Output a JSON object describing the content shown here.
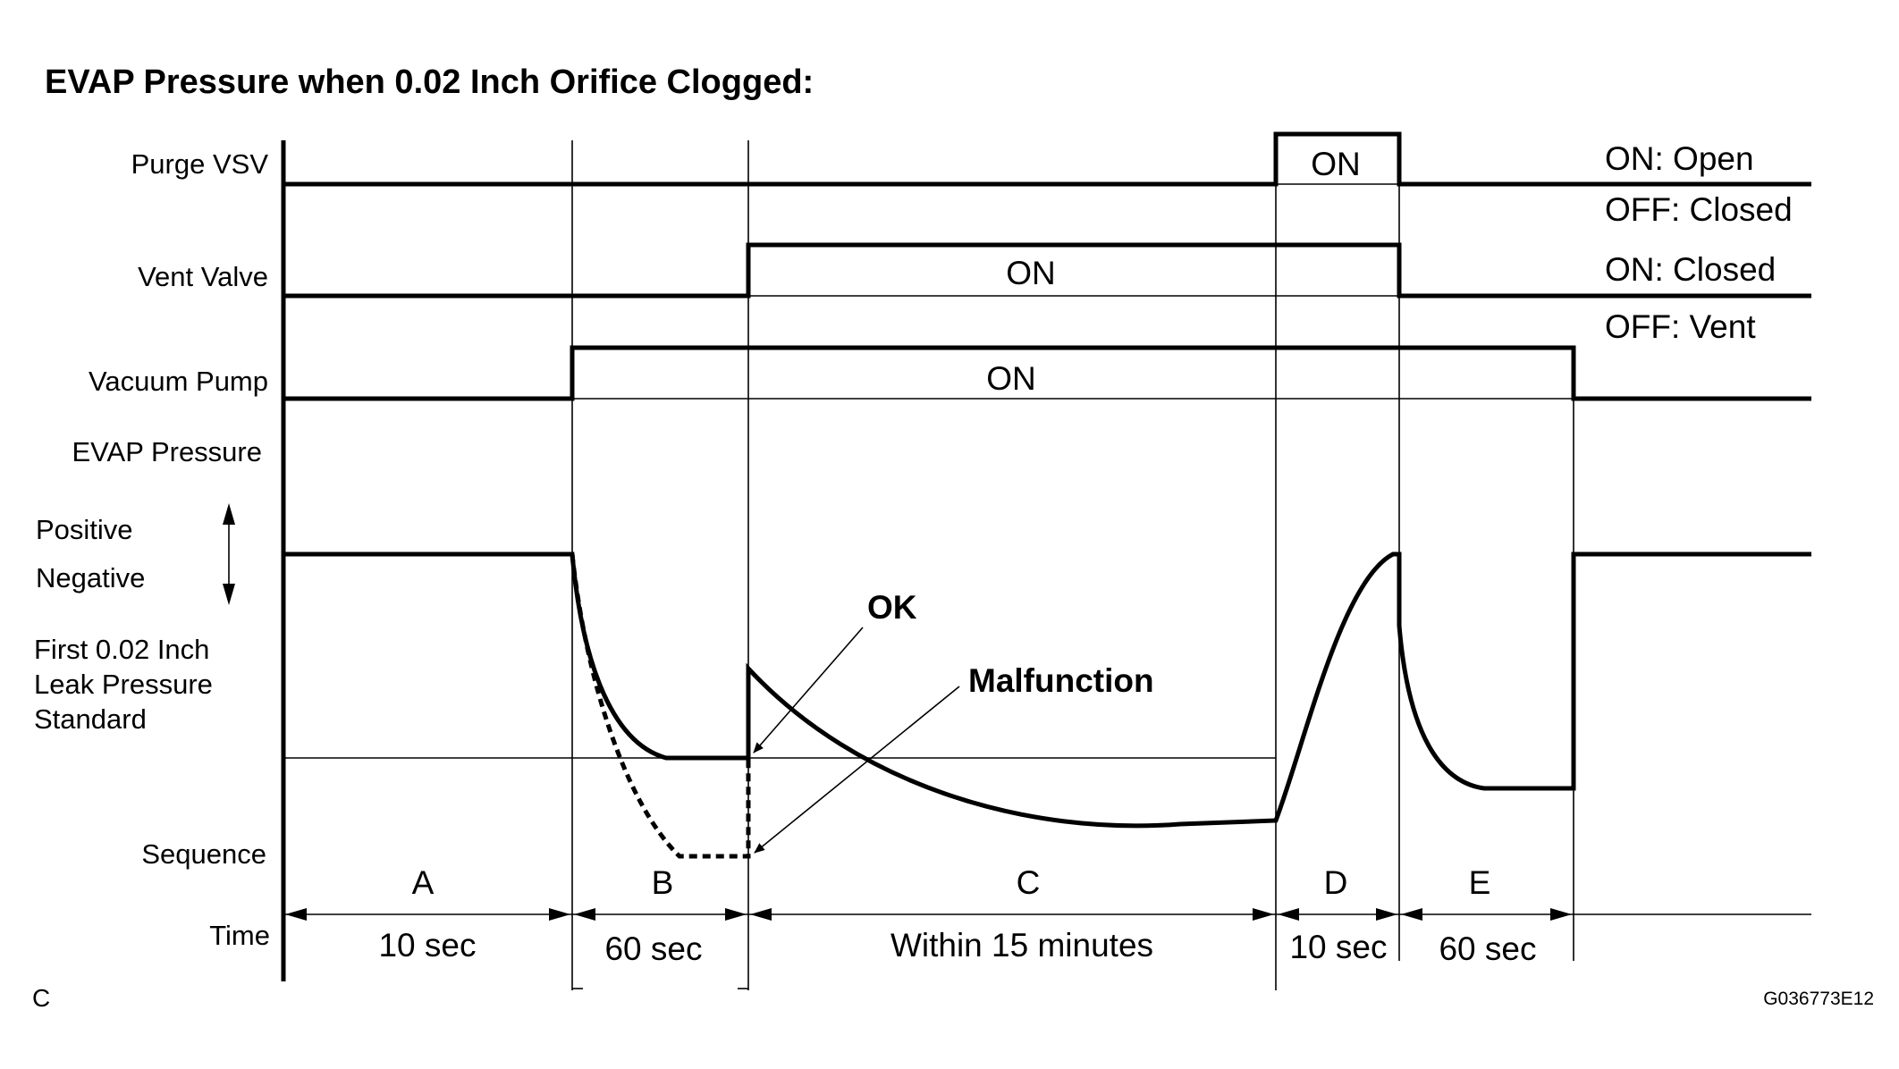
{
  "title": "EVAP Pressure when 0.02 Inch Orifice Clogged:",
  "row_labels": {
    "purge_vsv": "Purge VSV",
    "vent_valve": "Vent Valve",
    "vacuum_pump": "Vacuum Pump",
    "evap_pressure": "EVAP Pressure",
    "positive": "Positive",
    "negative": "Negative",
    "standard_line1": "First 0.02 Inch",
    "standard_line2": "Leak Pressure",
    "standard_line3": "Standard",
    "sequence": "Sequence",
    "time": "Time"
  },
  "state_labels": {
    "purge_on": "ON",
    "vent_on": "ON",
    "pump_on": "ON"
  },
  "legend": {
    "purge_on": "ON: Open",
    "purge_off": "OFF: Closed",
    "vent_on": "ON: Closed",
    "vent_off": "OFF: Vent"
  },
  "annotations": {
    "ok": "OK",
    "malfunction": "Malfunction"
  },
  "sequence": [
    {
      "step": "A",
      "time": "10 sec"
    },
    {
      "step": "B",
      "time": "60 sec"
    },
    {
      "step": "C",
      "time": "Within 15 minutes"
    },
    {
      "step": "D",
      "time": "10 sec"
    },
    {
      "step": "E",
      "time": "60 sec"
    }
  ],
  "corner_label": "C",
  "figure_id": "G036773E12"
}
